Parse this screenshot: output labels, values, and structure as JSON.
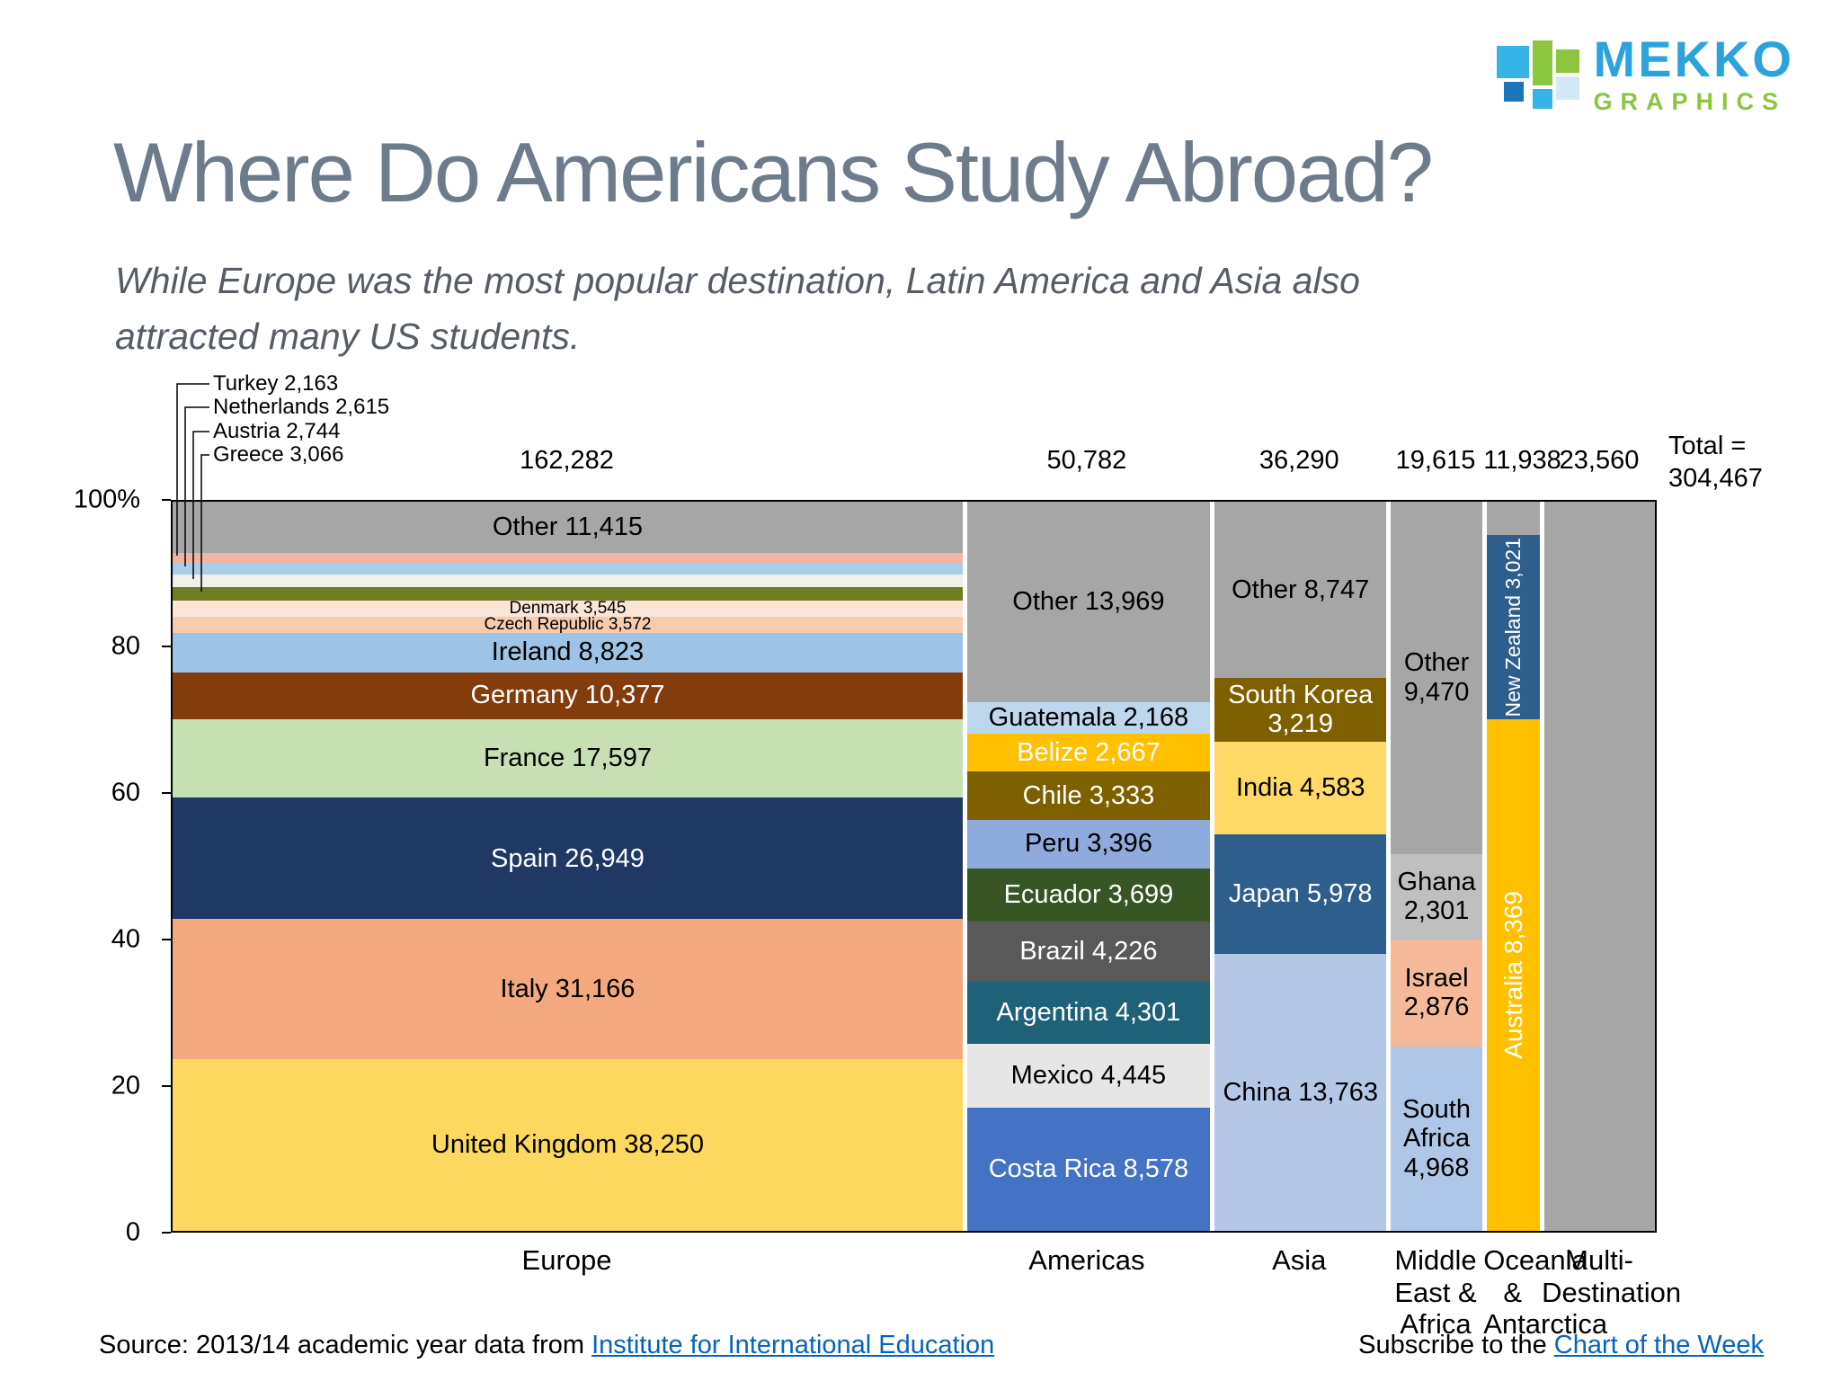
{
  "logo": {
    "name": "MEKKO",
    "tagline": "GRAPHICS"
  },
  "title": "Where Do Americans Study Abroad?",
  "subtitle_lines": [
    "While Europe was the most popular destination, Latin America and Asia also",
    "attracted many US students."
  ],
  "footer": {
    "source_prefix": "Source: 2013/14 academic year data from ",
    "source_link": "Institute for International Education",
    "subscribe_prefix": "Subscribe to the ",
    "subscribe_link": "Chart of the Week"
  },
  "chart_data": {
    "type": "mekko",
    "title": "Where Do Americans Study Abroad?",
    "grand_total": 304467,
    "total_label_lines": [
      "Total =",
      "304,467"
    ],
    "y_axis": {
      "min": 0,
      "max": 100,
      "unit": "percent",
      "tick_labels_top_down": [
        "100%",
        "80",
        "60",
        "40",
        "20",
        "0"
      ]
    },
    "callouts": [
      {
        "country": "Turkey",
        "label": "Turkey 2,163"
      },
      {
        "country": "Netherlands",
        "label": "Netherlands 2,615"
      },
      {
        "country": "Austria",
        "label": "Austria 2,744"
      },
      {
        "country": "Greece",
        "label": "Greece 3,066"
      }
    ],
    "columns": [
      {
        "name": "Europe",
        "axis_label_lines": [
          "Europe"
        ],
        "total": 162282,
        "total_display": "162,282",
        "segments_bottom_up": [
          {
            "name": "United Kingdom",
            "value": 38250,
            "label": "United Kingdom 38,250",
            "color": "#FCD85F",
            "text_color": "#000000"
          },
          {
            "name": "Italy",
            "value": 31166,
            "label": "Italy 31,166",
            "color": "#F4A87D",
            "text_color": "#000000"
          },
          {
            "name": "Spain",
            "value": 26949,
            "label": "Spain 26,949",
            "color": "#1F3864",
            "text_color": "#FFFFFF"
          },
          {
            "name": "France",
            "value": 17597,
            "label": "France 17,597",
            "color": "#C6E0B4",
            "text_color": "#000000"
          },
          {
            "name": "Germany",
            "value": 10377,
            "label": "Germany 10,377",
            "color": "#843C0C",
            "text_color": "#FFFFFF"
          },
          {
            "name": "Ireland",
            "value": 8823,
            "label": "Ireland 8,823",
            "color": "#9DC3E6",
            "text_color": "#000000"
          },
          {
            "name": "Czech Republic",
            "value": 3572,
            "label": "Czech Republic 3,572",
            "color": "#F8CBAD",
            "text_color": "#000000",
            "small_label": true
          },
          {
            "name": "Denmark",
            "value": 3545,
            "label": "Denmark 3,545",
            "color": "#FBE5D6",
            "text_color": "#000000",
            "small_label": true
          },
          {
            "name": "Greece",
            "value": 3066,
            "label": "",
            "color": "#6F7D22",
            "text_color": "#000000"
          },
          {
            "name": "Austria",
            "value": 2744,
            "label": "",
            "color": "#F0EFE9",
            "text_color": "#000000"
          },
          {
            "name": "Netherlands",
            "value": 2615,
            "label": "",
            "color": "#A9CDEB",
            "text_color": "#000000"
          },
          {
            "name": "Turkey",
            "value": 2163,
            "label": "",
            "color": "#F2B4A2",
            "text_color": "#000000"
          },
          {
            "name": "Other",
            "value": 11415,
            "label": "Other 11,415",
            "color": "#A6A6A6",
            "text_color": "#000000"
          }
        ]
      },
      {
        "name": "Americas",
        "axis_label_lines": [
          "Americas"
        ],
        "total": 50782,
        "total_display": "50,782",
        "segments_bottom_up": [
          {
            "name": "Costa Rica",
            "value": 8578,
            "label": "Costa Rica 8,578",
            "color": "#4472C4",
            "text_color": "#FFFFFF"
          },
          {
            "name": "Mexico",
            "value": 4445,
            "label": "Mexico 4,445",
            "color": "#E7E6E6",
            "text_color": "#000000"
          },
          {
            "name": "Argentina",
            "value": 4301,
            "label": "Argentina 4,301",
            "color": "#20617A",
            "text_color": "#FFFFFF"
          },
          {
            "name": "Brazil",
            "value": 4226,
            "label": "Brazil 4,226",
            "color": "#595959",
            "text_color": "#FFFFFF"
          },
          {
            "name": "Ecuador",
            "value": 3699,
            "label": "Ecuador 3,699",
            "color": "#375623",
            "text_color": "#FFFFFF"
          },
          {
            "name": "Peru",
            "value": 3396,
            "label": "Peru 3,396",
            "color": "#8FAADC",
            "text_color": "#000000"
          },
          {
            "name": "Chile",
            "value": 3333,
            "label": "Chile 3,333",
            "color": "#7F6000",
            "text_color": "#FFFFFF"
          },
          {
            "name": "Belize",
            "value": 2667,
            "label": "Belize 2,667",
            "color": "#FFC000",
            "text_color": "#FFFFFF"
          },
          {
            "name": "Guatemala",
            "value": 2168,
            "label": "Guatemala 2,168",
            "color": "#BDD7EE",
            "text_color": "#000000"
          },
          {
            "name": "Other",
            "value": 13969,
            "label": "Other 13,969",
            "color": "#A6A6A6",
            "text_color": "#000000"
          }
        ]
      },
      {
        "name": "Asia",
        "axis_label_lines": [
          "Asia"
        ],
        "total": 36290,
        "total_display": "36,290",
        "segments_bottom_up": [
          {
            "name": "China",
            "value": 13763,
            "label": "China 13,763",
            "color": "#B4C7E7",
            "text_color": "#000000"
          },
          {
            "name": "Japan",
            "value": 5978,
            "label": "Japan 5,978",
            "color": "#2E5E8C",
            "text_color": "#FFFFFF"
          },
          {
            "name": "India",
            "value": 4583,
            "label": "India 4,583",
            "color": "#FFD966",
            "text_color": "#000000"
          },
          {
            "name": "South Korea",
            "value": 3219,
            "label": "South Korea 3,219",
            "color": "#7F6000",
            "text_color": "#FFFFFF"
          },
          {
            "name": "Other",
            "value": 8747,
            "label": "Other 8,747",
            "color": "#A6A6A6",
            "text_color": "#000000"
          }
        ]
      },
      {
        "name": "Middle East & Africa",
        "axis_label_lines": [
          "Middle",
          "East &",
          "Africa"
        ],
        "total": 19615,
        "total_display": "19,615",
        "segments_bottom_up": [
          {
            "name": "South Africa",
            "value": 4968,
            "label": "South Africa 4,968",
            "color": "#AEC6E8",
            "text_color": "#000000"
          },
          {
            "name": "Israel",
            "value": 2876,
            "label": "Israel 2,876",
            "color": "#F5B999",
            "text_color": "#000000"
          },
          {
            "name": "Ghana",
            "value": 2301,
            "label": "Ghana 2,301",
            "color": "#BFBFBF",
            "text_color": "#000000"
          },
          {
            "name": "Other",
            "value": 9470,
            "label": "Other 9,470",
            "color": "#A6A6A6",
            "text_color": "#000000"
          }
        ]
      },
      {
        "name": "Oceania & Antarctica",
        "axis_label_lines": [
          "Oceania",
          "&",
          "Antarctica"
        ],
        "total": 11938,
        "total_display": "11,938",
        "segments_bottom_up": [
          {
            "name": "Australia",
            "value": 8369,
            "label": "Australia 8,369",
            "color": "#FFC000",
            "text_color": "#FFFFFF",
            "vertical": true
          },
          {
            "name": "New Zealand",
            "value": 3021,
            "label": "New Zealand 3,021",
            "color": "#2E5E8C",
            "text_color": "#FFFFFF",
            "vertical": true,
            "small_label": true
          },
          {
            "name": "Other",
            "value": 548,
            "label": "",
            "color": "#A6A6A6",
            "text_color": "#000000"
          }
        ]
      },
      {
        "name": "Multi-Destination",
        "axis_label_lines": [
          "Multi-",
          "Destination"
        ],
        "total": 23560,
        "total_display": "23,560",
        "segments_bottom_up": [
          {
            "name": "Multi-Destination",
            "value": 23560,
            "label": "",
            "color": "#A6A6A6",
            "text_color": "#000000"
          }
        ]
      }
    ]
  }
}
